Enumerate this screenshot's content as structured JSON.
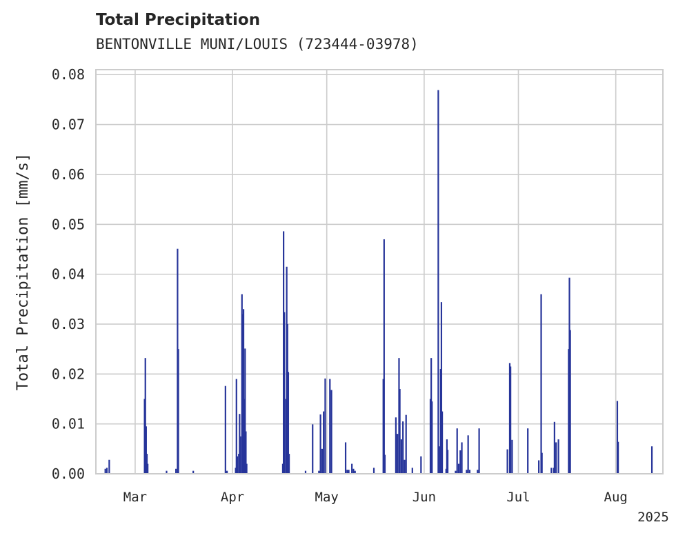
{
  "chart_data": {
    "type": "bar",
    "title": "Total Precipitation",
    "subtitle": "BENTONVILLE MUNI/LOUIS (723444-03978)",
    "ylabel": "Total Precipitation [mm/s]",
    "xlabel": "",
    "year_label": "2025",
    "ylim": [
      0,
      0.081
    ],
    "xlim": [
      "2025-02-16T12:00",
      "2025-08-16T00:00"
    ],
    "yticks": [
      "0.00",
      "0.01",
      "0.02",
      "0.03",
      "0.04",
      "0.05",
      "0.06",
      "0.07",
      "0.08"
    ],
    "xticks": [
      {
        "date": "2025-03-01",
        "label": "Mar"
      },
      {
        "date": "2025-04-01",
        "label": "Apr"
      },
      {
        "date": "2025-05-01",
        "label": "May"
      },
      {
        "date": "2025-06-01",
        "label": "Jun"
      },
      {
        "date": "2025-07-01",
        "label": "Jul"
      },
      {
        "date": "2025-08-01",
        "label": "Aug"
      }
    ],
    "grid": true,
    "color": "#27359a",
    "series": [
      {
        "values": [
          [
            "2025-02-19T12:00",
            0.001
          ],
          [
            "2025-02-20T00:00",
            0.0012
          ],
          [
            "2025-02-20T18:00",
            0.0028
          ],
          [
            "2025-03-04T00:00",
            0.015
          ],
          [
            "2025-03-04T06:00",
            0.0232
          ],
          [
            "2025-03-04T12:00",
            0.0095
          ],
          [
            "2025-03-04T18:00",
            0.004
          ],
          [
            "2025-03-05T00:00",
            0.002
          ],
          [
            "2025-03-11T00:00",
            0.0006
          ],
          [
            "2025-03-14T00:00",
            0.001
          ],
          [
            "2025-03-14T12:00",
            0.0451
          ],
          [
            "2025-03-14T18:00",
            0.025
          ],
          [
            "2025-03-19T12:00",
            0.0006
          ],
          [
            "2025-03-29T18:00",
            0.0176
          ],
          [
            "2025-03-30T06:00",
            0.0006
          ],
          [
            "2025-04-02T00:00",
            0.0012
          ],
          [
            "2025-04-02T06:00",
            0.019
          ],
          [
            "2025-04-02T12:00",
            0.0035
          ],
          [
            "2025-04-03T00:00",
            0.004
          ],
          [
            "2025-04-03T06:00",
            0.012
          ],
          [
            "2025-04-03T12:00",
            0.0075
          ],
          [
            "2025-04-04T00:00",
            0.036
          ],
          [
            "2025-04-04T06:00",
            0.032
          ],
          [
            "2025-04-04T12:00",
            0.033
          ],
          [
            "2025-04-04T18:00",
            0.015
          ],
          [
            "2025-04-05T00:00",
            0.0251
          ],
          [
            "2025-04-05T06:00",
            0.0085
          ],
          [
            "2025-04-05T12:00",
            0.002
          ],
          [
            "2025-04-17T00:00",
            0.002
          ],
          [
            "2025-04-17T06:00",
            0.0486
          ],
          [
            "2025-04-17T12:00",
            0.0324
          ],
          [
            "2025-04-18T00:00",
            0.015
          ],
          [
            "2025-04-18T06:00",
            0.0415
          ],
          [
            "2025-04-18T12:00",
            0.03
          ],
          [
            "2025-04-18T18:00",
            0.0204
          ],
          [
            "2025-04-19T00:00",
            0.004
          ],
          [
            "2025-04-24T06:00",
            0.0006
          ],
          [
            "2025-04-26T12:00",
            0.0099
          ],
          [
            "2025-04-28T12:00",
            0.0006
          ],
          [
            "2025-04-29T00:00",
            0.0119
          ],
          [
            "2025-04-29T12:00",
            0.005
          ],
          [
            "2025-04-30T00:00",
            0.0125
          ],
          [
            "2025-04-30T12:00",
            0.0191
          ],
          [
            "2025-05-02T00:00",
            0.019
          ],
          [
            "2025-05-02T12:00",
            0.0168
          ],
          [
            "2025-05-07T00:00",
            0.0063
          ],
          [
            "2025-05-07T12:00",
            0.0008
          ],
          [
            "2025-05-08T00:00",
            0.0008
          ],
          [
            "2025-05-09T00:00",
            0.002
          ],
          [
            "2025-05-09T12:00",
            0.001
          ],
          [
            "2025-05-10T00:00",
            0.0006
          ],
          [
            "2025-05-16T00:00",
            0.0012
          ],
          [
            "2025-05-19T00:00",
            0.019
          ],
          [
            "2025-05-19T06:00",
            0.047
          ],
          [
            "2025-05-19T12:00",
            0.0038
          ],
          [
            "2025-05-23T00:00",
            0.0113
          ],
          [
            "2025-05-23T12:00",
            0.008
          ],
          [
            "2025-05-24T00:00",
            0.0232
          ],
          [
            "2025-05-24T06:00",
            0.017
          ],
          [
            "2025-05-24T18:00",
            0.0069
          ],
          [
            "2025-05-25T06:00",
            0.0105
          ],
          [
            "2025-05-25T18:00",
            0.0028
          ],
          [
            "2025-05-26T06:00",
            0.0118
          ],
          [
            "2025-05-28T06:00",
            0.0012
          ],
          [
            "2025-05-31T00:00",
            0.0035
          ],
          [
            "2025-06-03T00:00",
            0.015
          ],
          [
            "2025-06-03T06:00",
            0.0232
          ],
          [
            "2025-06-03T12:00",
            0.0145
          ],
          [
            "2025-06-05T12:00",
            0.0769
          ],
          [
            "2025-06-06T00:00",
            0.0055
          ],
          [
            "2025-06-06T06:00",
            0.021
          ],
          [
            "2025-06-06T12:00",
            0.0344
          ],
          [
            "2025-06-06T18:00",
            0.0125
          ],
          [
            "2025-06-08T00:00",
            0.001
          ],
          [
            "2025-06-08T06:00",
            0.0069
          ],
          [
            "2025-06-08T12:00",
            0.0048
          ],
          [
            "2025-06-11T00:00",
            0.0006
          ],
          [
            "2025-06-11T12:00",
            0.0091
          ],
          [
            "2025-06-12T00:00",
            0.002
          ],
          [
            "2025-06-12T12:00",
            0.0047
          ],
          [
            "2025-06-13T00:00",
            0.0063
          ],
          [
            "2025-06-14T12:00",
            0.0008
          ],
          [
            "2025-06-15T00:00",
            0.0077
          ],
          [
            "2025-06-15T12:00",
            0.0008
          ],
          [
            "2025-06-18T00:00",
            0.0008
          ],
          [
            "2025-06-18T12:00",
            0.0091
          ],
          [
            "2025-06-27T12:00",
            0.0049
          ],
          [
            "2025-06-28T06:00",
            0.0222
          ],
          [
            "2025-06-28T12:00",
            0.0215
          ],
          [
            "2025-06-29T00:00",
            0.0068
          ],
          [
            "2025-07-04T00:00",
            0.0091
          ],
          [
            "2025-07-07T12:00",
            0.0027
          ],
          [
            "2025-07-08T06:00",
            0.036
          ],
          [
            "2025-07-08T12:00",
            0.0042
          ],
          [
            "2025-07-11T12:00",
            0.0012
          ],
          [
            "2025-07-12T06:00",
            0.0012
          ],
          [
            "2025-07-12T12:00",
            0.0104
          ],
          [
            "2025-07-13T00:00",
            0.0063
          ],
          [
            "2025-07-13T18:00",
            0.0069
          ],
          [
            "2025-07-17T00:00",
            0.025
          ],
          [
            "2025-07-17T06:00",
            0.0393
          ],
          [
            "2025-07-17T12:00",
            0.0288
          ],
          [
            "2025-08-01T12:00",
            0.0146
          ],
          [
            "2025-08-01T18:00",
            0.0064
          ],
          [
            "2025-08-12T12:00",
            0.0055
          ]
        ]
      }
    ]
  }
}
